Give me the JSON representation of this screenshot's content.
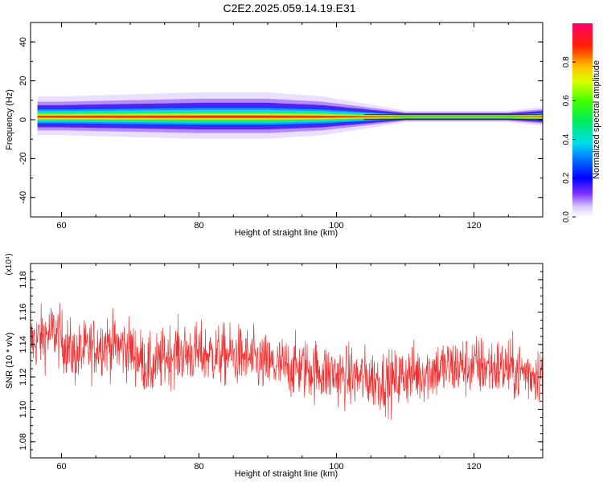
{
  "title": "C2E2.2025.059.14.19.E31",
  "chart_data": [
    {
      "type": "heatmap",
      "xlabel": "Height of straight line (km)",
      "ylabel": "Frequency (Hz)",
      "xlim": [
        55.5,
        130
      ],
      "ylim": [
        -50,
        50
      ],
      "xticks": [
        "60",
        "80",
        "100",
        "120"
      ],
      "yticks": [
        "40",
        "20",
        "0",
        "-20",
        "-40"
      ],
      "colorbar": {
        "label": "Normalized spectral amplitude",
        "range": [
          0,
          1
        ],
        "ticks": [
          "0.0",
          "0.2",
          "0.4",
          "0.6",
          "0.8"
        ]
      },
      "band": {
        "x_start": 56.5,
        "center_freq_hz": 1.5,
        "peak_amplitude": 0.95,
        "halfwidth_hz": [
          [
            56.5,
            5
          ],
          [
            60,
            5
          ],
          [
            70,
            5.5
          ],
          [
            80,
            6
          ],
          [
            90,
            6
          ],
          [
            98,
            5
          ],
          [
            105,
            3
          ],
          [
            110,
            1.5
          ],
          [
            125,
            1.5
          ],
          [
            130,
            2.5
          ]
        ]
      }
    },
    {
      "type": "line",
      "xlabel": "Height of straight line (km)",
      "ylabel": "SNR (10 * v/v)",
      "y_multiplier": "(x10⁴)",
      "xlim": [
        55.5,
        130
      ],
      "ylim": [
        1.07,
        1.19
      ],
      "xticks": [
        "60",
        "80",
        "100",
        "120"
      ],
      "yticks": [
        "1.08",
        "1.10",
        "1.12",
        "1.14",
        "1.16",
        "1.18"
      ],
      "grid": false,
      "series": [
        {
          "color": "#ee3333",
          "trend": [
            [
              55.5,
              1.141
            ],
            [
              59,
              1.148
            ],
            [
              62,
              1.133
            ],
            [
              66,
              1.141
            ],
            [
              70,
              1.137
            ],
            [
              73,
              1.125
            ],
            [
              76,
              1.135
            ],
            [
              80,
              1.134
            ],
            [
              86,
              1.133
            ],
            [
              90,
              1.127
            ],
            [
              96,
              1.125
            ],
            [
              100,
              1.121
            ],
            [
              105,
              1.119
            ],
            [
              108,
              1.117
            ],
            [
              110,
              1.121
            ],
            [
              115,
              1.125
            ],
            [
              120,
              1.127
            ],
            [
              125,
              1.125
            ],
            [
              128,
              1.122
            ],
            [
              130,
              1.123
            ]
          ]
        }
      ]
    }
  ]
}
